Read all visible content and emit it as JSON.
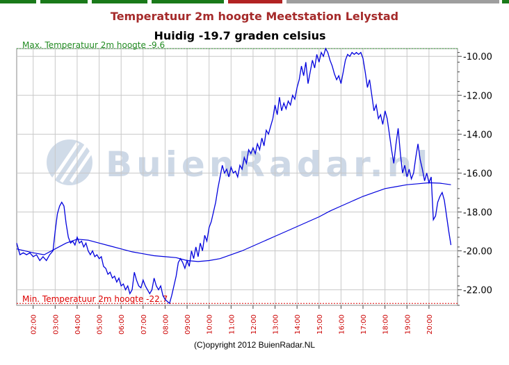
{
  "header_tab_colors": [
    "#1a7a1a",
    "#1a7a1a",
    "#1a7a1a",
    "#1a7a1a",
    "#b22222",
    "#9e9e9e",
    "#1a7a1a"
  ],
  "title": "Temperatuur 2m hoogte Meetstation Lelystad",
  "current_label": "Huidig -19.7 graden celsius",
  "copyright": "(C)opyright 2012 BuienRadar.NL",
  "watermark": "BuienRadar.nl",
  "chart_data": {
    "type": "line",
    "x_unit": "time of day (hours)",
    "x_range": [
      1.25,
      21.3
    ],
    "ylim": [
      -22.8,
      -9.6
    ],
    "y_axis_side": "right",
    "y_ticks": [
      -10,
      -12,
      -14,
      -16,
      -18,
      -20,
      -22
    ],
    "y_tick_labels": [
      "-10.00",
      "-12.00",
      "-14.00",
      "-16.00",
      "-18.00",
      "-20.00",
      "-22.00"
    ],
    "x_ticks": [
      2,
      3,
      4,
      5,
      6,
      7,
      8,
      9,
      10,
      11,
      12,
      13,
      14,
      15,
      16,
      17,
      18,
      19,
      20
    ],
    "x_tick_labels": [
      "02:00",
      "03:00",
      "04:00",
      "05:00",
      "06:00",
      "07:00",
      "08:00",
      "09:00",
      "10:00",
      "11:00",
      "12:00",
      "13:00",
      "14:00",
      "15:00",
      "16:00",
      "17:00",
      "18:00",
      "19:00",
      "20:00"
    ],
    "grid": true,
    "colors": {
      "series": "#0000dd",
      "max_line": "#228b22",
      "min_line": "#dd0000",
      "grid": "#c8c8c8",
      "tick_labels_x": "#cc0000"
    },
    "reference_lines": [
      {
        "label": "Max. Temperatuur 2m hoogte -9.6",
        "value": -9.6
      },
      {
        "label": "Min. Temperatuur 2m hoogte -22.7",
        "value": -22.7
      }
    ],
    "series": [
      {
        "points": [
          [
            1.25,
            -19.6
          ],
          [
            1.4,
            -20.2
          ],
          [
            1.55,
            -20.1
          ],
          [
            1.7,
            -20.2
          ],
          [
            1.85,
            -20.1
          ],
          [
            2.0,
            -20.3
          ],
          [
            2.15,
            -20.2
          ],
          [
            2.3,
            -20.5
          ],
          [
            2.45,
            -20.3
          ],
          [
            2.6,
            -20.5
          ],
          [
            2.75,
            -20.2
          ],
          [
            2.9,
            -20.0
          ],
          [
            3.0,
            -19.0
          ],
          [
            3.1,
            -18.1
          ],
          [
            3.2,
            -17.7
          ],
          [
            3.3,
            -17.5
          ],
          [
            3.4,
            -17.7
          ],
          [
            3.5,
            -18.6
          ],
          [
            3.6,
            -19.3
          ],
          [
            3.7,
            -19.6
          ],
          [
            3.8,
            -19.5
          ],
          [
            3.9,
            -19.7
          ],
          [
            4.0,
            -19.3
          ],
          [
            4.1,
            -19.6
          ],
          [
            4.2,
            -19.5
          ],
          [
            4.3,
            -19.8
          ],
          [
            4.4,
            -19.6
          ],
          [
            4.5,
            -20.0
          ],
          [
            4.6,
            -20.2
          ],
          [
            4.7,
            -20.0
          ],
          [
            4.8,
            -20.3
          ],
          [
            4.9,
            -20.2
          ],
          [
            5.0,
            -20.4
          ],
          [
            5.1,
            -20.3
          ],
          [
            5.2,
            -20.8
          ],
          [
            5.3,
            -20.9
          ],
          [
            5.4,
            -21.2
          ],
          [
            5.5,
            -21.1
          ],
          [
            5.6,
            -21.4
          ],
          [
            5.7,
            -21.3
          ],
          [
            5.8,
            -21.6
          ],
          [
            5.9,
            -21.4
          ],
          [
            6.0,
            -21.8
          ],
          [
            6.1,
            -21.7
          ],
          [
            6.2,
            -22.0
          ],
          [
            6.3,
            -21.8
          ],
          [
            6.4,
            -22.2
          ],
          [
            6.5,
            -22.0
          ],
          [
            6.6,
            -21.1
          ],
          [
            6.7,
            -21.5
          ],
          [
            6.8,
            -21.8
          ],
          [
            6.9,
            -21.9
          ],
          [
            7.0,
            -21.5
          ],
          [
            7.1,
            -21.8
          ],
          [
            7.2,
            -22.0
          ],
          [
            7.3,
            -22.2
          ],
          [
            7.4,
            -22.0
          ],
          [
            7.5,
            -21.4
          ],
          [
            7.6,
            -21.8
          ],
          [
            7.7,
            -22.0
          ],
          [
            7.8,
            -21.8
          ],
          [
            7.9,
            -22.3
          ],
          [
            8.0,
            -22.5
          ],
          [
            8.1,
            -22.6
          ],
          [
            8.2,
            -22.7
          ],
          [
            8.3,
            -22.3
          ],
          [
            8.4,
            -21.8
          ],
          [
            8.5,
            -21.3
          ],
          [
            8.6,
            -20.6
          ],
          [
            8.7,
            -20.4
          ],
          [
            8.8,
            -20.6
          ],
          [
            8.9,
            -20.9
          ],
          [
            9.0,
            -20.5
          ],
          [
            9.1,
            -20.8
          ],
          [
            9.2,
            -20.0
          ],
          [
            9.3,
            -20.4
          ],
          [
            9.4,
            -19.8
          ],
          [
            9.5,
            -20.3
          ],
          [
            9.6,
            -19.6
          ],
          [
            9.7,
            -20.0
          ],
          [
            9.8,
            -19.2
          ],
          [
            9.9,
            -19.5
          ],
          [
            10.0,
            -18.8
          ],
          [
            10.1,
            -18.5
          ],
          [
            10.2,
            -18.0
          ],
          [
            10.3,
            -17.5
          ],
          [
            10.4,
            -16.8
          ],
          [
            10.5,
            -16.2
          ],
          [
            10.6,
            -15.6
          ],
          [
            10.7,
            -16.0
          ],
          [
            10.8,
            -15.8
          ],
          [
            10.9,
            -16.2
          ],
          [
            11.0,
            -15.7
          ],
          [
            11.1,
            -16.0
          ],
          [
            11.2,
            -15.9
          ],
          [
            11.3,
            -16.2
          ],
          [
            11.4,
            -15.6
          ],
          [
            11.5,
            -15.8
          ],
          [
            11.6,
            -15.2
          ],
          [
            11.7,
            -15.5
          ],
          [
            11.8,
            -14.8
          ],
          [
            11.9,
            -15.0
          ],
          [
            12.0,
            -14.7
          ],
          [
            12.1,
            -15.0
          ],
          [
            12.2,
            -14.5
          ],
          [
            12.3,
            -14.8
          ],
          [
            12.4,
            -14.2
          ],
          [
            12.5,
            -14.6
          ],
          [
            12.6,
            -13.8
          ],
          [
            12.7,
            -14.0
          ],
          [
            12.8,
            -13.6
          ],
          [
            12.9,
            -13.2
          ],
          [
            13.0,
            -12.5
          ],
          [
            13.1,
            -13.0
          ],
          [
            13.2,
            -12.1
          ],
          [
            13.3,
            -12.8
          ],
          [
            13.4,
            -12.4
          ],
          [
            13.5,
            -12.7
          ],
          [
            13.6,
            -12.3
          ],
          [
            13.7,
            -12.5
          ],
          [
            13.8,
            -12.0
          ],
          [
            13.9,
            -12.2
          ],
          [
            14.0,
            -11.6
          ],
          [
            14.1,
            -11.2
          ],
          [
            14.2,
            -10.5
          ],
          [
            14.3,
            -11.0
          ],
          [
            14.4,
            -10.3
          ],
          [
            14.5,
            -11.4
          ],
          [
            14.6,
            -10.8
          ],
          [
            14.7,
            -10.2
          ],
          [
            14.8,
            -10.6
          ],
          [
            14.9,
            -9.9
          ],
          [
            15.0,
            -10.3
          ],
          [
            15.1,
            -9.8
          ],
          [
            15.2,
            -10.0
          ],
          [
            15.3,
            -9.6
          ],
          [
            15.4,
            -9.8
          ],
          [
            15.5,
            -10.2
          ],
          [
            15.6,
            -10.5
          ],
          [
            15.7,
            -10.9
          ],
          [
            15.8,
            -11.2
          ],
          [
            15.9,
            -11.0
          ],
          [
            16.0,
            -11.4
          ],
          [
            16.1,
            -10.8
          ],
          [
            16.2,
            -10.2
          ],
          [
            16.3,
            -9.9
          ],
          [
            16.4,
            -10.0
          ],
          [
            16.5,
            -9.8
          ],
          [
            16.6,
            -9.9
          ],
          [
            16.7,
            -9.8
          ],
          [
            16.8,
            -9.9
          ],
          [
            16.9,
            -9.8
          ],
          [
            17.0,
            -10.1
          ],
          [
            17.1,
            -10.8
          ],
          [
            17.2,
            -11.6
          ],
          [
            17.3,
            -11.2
          ],
          [
            17.4,
            -12.0
          ],
          [
            17.5,
            -12.8
          ],
          [
            17.6,
            -12.5
          ],
          [
            17.7,
            -13.2
          ],
          [
            17.8,
            -13.0
          ],
          [
            17.9,
            -13.5
          ],
          [
            18.0,
            -12.8
          ],
          [
            18.1,
            -13.2
          ],
          [
            18.2,
            -14.0
          ],
          [
            18.3,
            -14.8
          ],
          [
            18.4,
            -15.5
          ],
          [
            18.5,
            -14.5
          ],
          [
            18.6,
            -13.7
          ],
          [
            18.7,
            -15.0
          ],
          [
            18.8,
            -16.0
          ],
          [
            18.9,
            -15.6
          ],
          [
            19.0,
            -16.2
          ],
          [
            19.1,
            -15.8
          ],
          [
            19.2,
            -16.3
          ],
          [
            19.3,
            -16.0
          ],
          [
            19.4,
            -15.2
          ],
          [
            19.5,
            -14.5
          ],
          [
            19.6,
            -15.3
          ],
          [
            19.7,
            -15.8
          ],
          [
            19.8,
            -16.4
          ],
          [
            19.9,
            -16.0
          ],
          [
            20.0,
            -16.5
          ],
          [
            20.1,
            -16.2
          ],
          [
            20.2,
            -18.4
          ],
          [
            20.3,
            -18.2
          ],
          [
            20.4,
            -17.5
          ],
          [
            20.5,
            -17.2
          ],
          [
            20.6,
            -17.0
          ],
          [
            20.7,
            -17.4
          ],
          [
            20.8,
            -18.2
          ],
          [
            20.9,
            -19.0
          ],
          [
            21.0,
            -19.7
          ]
        ]
      },
      {
        "points": [
          [
            1.25,
            -19.9
          ],
          [
            2.0,
            -20.1
          ],
          [
            2.5,
            -20.2
          ],
          [
            3.0,
            -19.9
          ],
          [
            3.5,
            -19.6
          ],
          [
            4.0,
            -19.4
          ],
          [
            4.5,
            -19.45
          ],
          [
            5.0,
            -19.6
          ],
          [
            5.5,
            -19.75
          ],
          [
            6.0,
            -19.9
          ],
          [
            6.5,
            -20.05
          ],
          [
            7.0,
            -20.15
          ],
          [
            7.5,
            -20.25
          ],
          [
            8.0,
            -20.3
          ],
          [
            8.5,
            -20.35
          ],
          [
            9.0,
            -20.5
          ],
          [
            9.5,
            -20.55
          ],
          [
            10.0,
            -20.5
          ],
          [
            10.5,
            -20.4
          ],
          [
            11.0,
            -20.2
          ],
          [
            11.5,
            -20.0
          ],
          [
            12.0,
            -19.75
          ],
          [
            12.5,
            -19.5
          ],
          [
            13.0,
            -19.25
          ],
          [
            13.5,
            -19.0
          ],
          [
            14.0,
            -18.75
          ],
          [
            14.5,
            -18.5
          ],
          [
            15.0,
            -18.25
          ],
          [
            15.5,
            -17.95
          ],
          [
            16.0,
            -17.7
          ],
          [
            16.5,
            -17.45
          ],
          [
            17.0,
            -17.2
          ],
          [
            17.5,
            -17.0
          ],
          [
            18.0,
            -16.8
          ],
          [
            18.5,
            -16.7
          ],
          [
            19.0,
            -16.6
          ],
          [
            19.5,
            -16.55
          ],
          [
            20.0,
            -16.5
          ],
          [
            20.5,
            -16.52
          ],
          [
            21.0,
            -16.6
          ]
        ]
      }
    ]
  }
}
